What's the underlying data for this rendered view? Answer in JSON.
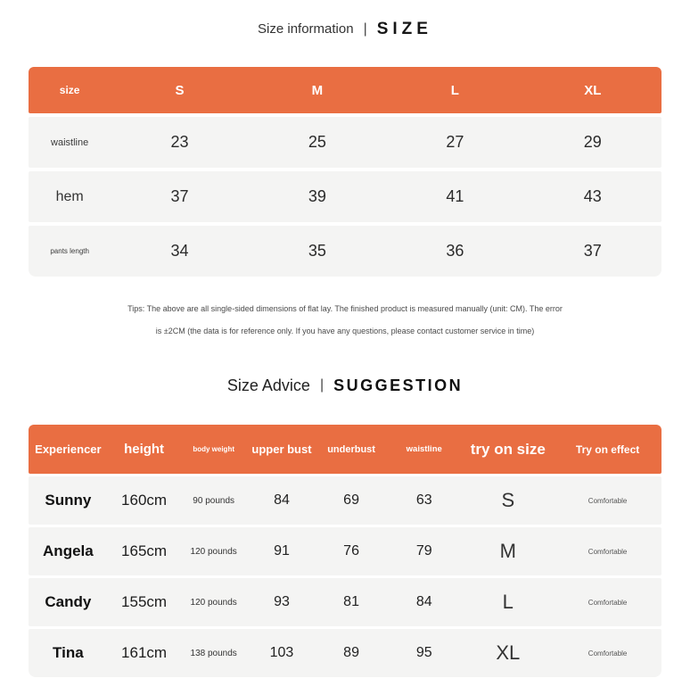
{
  "theme": {
    "accent": "#E96E42",
    "row_bg": "#F4F4F3",
    "page_bg": "#FFFFFF"
  },
  "section_size": {
    "title_left": "Size information",
    "title_sep": "|",
    "title_right": "SIZE",
    "table": {
      "header": [
        "size",
        "S",
        "M",
        "L",
        "XL"
      ],
      "rows": [
        {
          "label": "waistline",
          "values": [
            "23",
            "25",
            "27",
            "29"
          ]
        },
        {
          "label": "hem",
          "values": [
            "37",
            "39",
            "41",
            "43"
          ]
        },
        {
          "label": "pants length",
          "values": [
            "34",
            "35",
            "36",
            "37"
          ]
        }
      ]
    },
    "tips_line1": "Tips: The above are all single-sided dimensions of flat lay. The finished product is measured manually (unit: CM). The error",
    "tips_line2": "is ±2CM (the data is for reference only. If you have any questions, please contact customer service in time)"
  },
  "section_advice": {
    "title_left": "Size Advice",
    "title_sep": "|",
    "title_right": "SUGGESTION",
    "table": {
      "header": [
        "Experiencer",
        "height",
        "body weight",
        "upper bust",
        "underbust",
        "waistline",
        "try on size",
        "Try on effect"
      ],
      "rows": [
        [
          "Sunny",
          "160cm",
          "90 pounds",
          "84",
          "69",
          "63",
          "S",
          "Comfortable"
        ],
        [
          "Angela",
          "165cm",
          "120 pounds",
          "91",
          "76",
          "79",
          "M",
          "Comfortable"
        ],
        [
          "Candy",
          "155cm",
          "120 pounds",
          "93",
          "81",
          "84",
          "L",
          "Comfortable"
        ],
        [
          "Tina",
          "161cm",
          "138 pounds",
          "103",
          "89",
          "95",
          "XL",
          "Comfortable"
        ]
      ]
    }
  }
}
